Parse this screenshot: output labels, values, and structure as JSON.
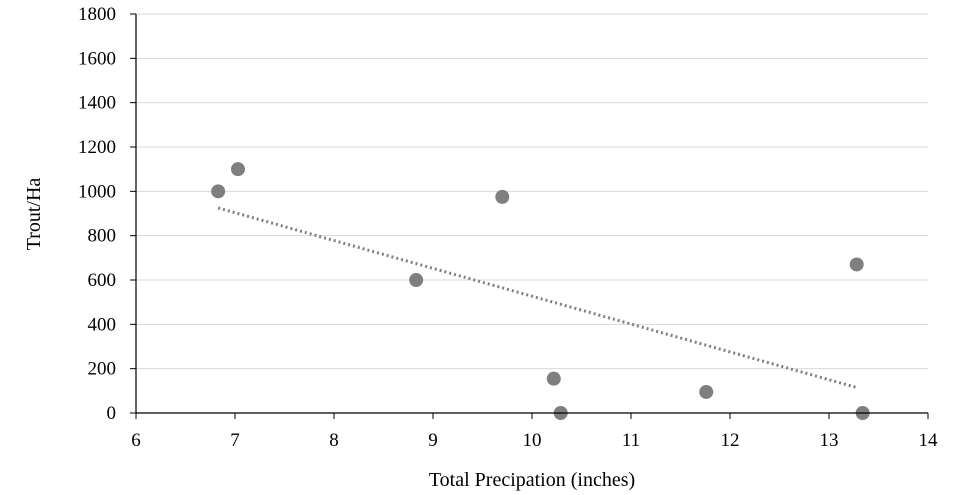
{
  "chart_data": {
    "type": "scatter",
    "title": "",
    "xlabel": "Total Precipation (inches)",
    "ylabel": "Trout/Ha",
    "xlim": [
      6,
      14
    ],
    "ylim": [
      0,
      1800
    ],
    "x_ticks": [
      6,
      7,
      8,
      9,
      10,
      11,
      12,
      13,
      14
    ],
    "y_ticks": [
      0,
      200,
      400,
      600,
      800,
      1000,
      1200,
      1400,
      1600,
      1800
    ],
    "grid": "horizontal",
    "legend": "none",
    "series": [
      {
        "points": [
          {
            "x": 6.83,
            "y": 1000
          },
          {
            "x": 7.03,
            "y": 1100
          },
          {
            "x": 8.83,
            "y": 600
          },
          {
            "x": 9.7,
            "y": 975
          },
          {
            "x": 10.22,
            "y": 155
          },
          {
            "x": 10.29,
            "y": 0
          },
          {
            "x": 11.76,
            "y": 95
          },
          {
            "x": 13.28,
            "y": 670
          },
          {
            "x": 13.34,
            "y": 0
          }
        ]
      }
    ],
    "trendline": {
      "type": "linear",
      "x_range": [
        6.83,
        13.28
      ],
      "y_values": [
        925,
        115
      ]
    },
    "colors": {
      "marker": "#7f7f7f",
      "trendline": "#7f7f7f",
      "gridline": "#d9d9d9",
      "axis": "#000000"
    }
  }
}
